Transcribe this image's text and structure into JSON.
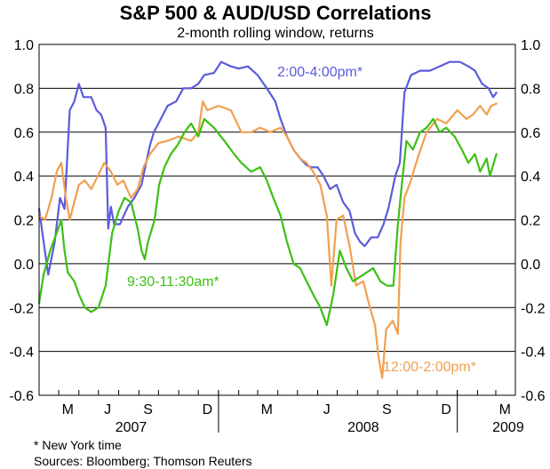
{
  "chart_data": {
    "type": "line",
    "title": "S&P 500 & AUD/USD Correlations",
    "subtitle": "2-month rolling window, returns",
    "ylim": [
      -0.6,
      1.0
    ],
    "yticks": [
      "1.0",
      "0.8",
      "0.6",
      "0.4",
      "0.2",
      "0.0",
      "-0.2",
      "-0.4",
      "-0.6"
    ],
    "x_range": [
      "2007-04-01",
      "2009-03-31"
    ],
    "month_ticks": [
      {
        "label": "M",
        "date": "2007-05-15"
      },
      {
        "label": "J",
        "date": "2007-07-15"
      },
      {
        "label": "S",
        "date": "2007-09-15"
      },
      {
        "label": "D",
        "date": "2007-12-15"
      },
      {
        "label": "M",
        "date": "2008-03-15"
      },
      {
        "label": "J",
        "date": "2008-06-15"
      },
      {
        "label": "S",
        "date": "2008-09-15"
      },
      {
        "label": "D",
        "date": "2008-12-15"
      },
      {
        "label": "M",
        "date": "2009-03-15"
      }
    ],
    "year_labels": [
      {
        "label": "2007",
        "date": "2007-08-20"
      },
      {
        "label": "2008",
        "date": "2008-08-10"
      },
      {
        "label": "2009",
        "date": "2009-03-20"
      }
    ],
    "year_dividers": [
      "2008-01-01",
      "2009-01-01"
    ],
    "grid": true,
    "series": [
      {
        "name": "2:00-4:00pm*",
        "color": "#5b5bdc",
        "points": [
          [
            "2007-04-01",
            0.25
          ],
          [
            "2007-04-08",
            0.1
          ],
          [
            "2007-04-15",
            -0.05
          ],
          [
            "2007-04-25",
            0.1
          ],
          [
            "2007-05-03",
            0.3
          ],
          [
            "2007-05-10",
            0.25
          ],
          [
            "2007-05-18",
            0.7
          ],
          [
            "2007-05-25",
            0.74
          ],
          [
            "2007-06-01",
            0.82
          ],
          [
            "2007-06-08",
            0.76
          ],
          [
            "2007-06-20",
            0.76
          ],
          [
            "2007-06-28",
            0.7
          ],
          [
            "2007-07-05",
            0.68
          ],
          [
            "2007-07-12",
            0.62
          ],
          [
            "2007-07-16",
            0.16
          ],
          [
            "2007-07-20",
            0.26
          ],
          [
            "2007-07-25",
            0.18
          ],
          [
            "2007-08-03",
            0.18
          ],
          [
            "2007-08-15",
            0.26
          ],
          [
            "2007-08-25",
            0.3
          ],
          [
            "2007-09-05",
            0.36
          ],
          [
            "2007-09-12",
            0.46
          ],
          [
            "2007-09-18",
            0.54
          ],
          [
            "2007-09-24",
            0.6
          ],
          [
            "2007-10-01",
            0.64
          ],
          [
            "2007-10-15",
            0.72
          ],
          [
            "2007-10-28",
            0.74
          ],
          [
            "2007-11-08",
            0.8
          ],
          [
            "2007-11-20",
            0.8
          ],
          [
            "2007-12-01",
            0.82
          ],
          [
            "2007-12-10",
            0.86
          ],
          [
            "2007-12-25",
            0.87
          ],
          [
            "2008-01-05",
            0.92
          ],
          [
            "2008-01-20",
            0.9
          ],
          [
            "2008-02-01",
            0.89
          ],
          [
            "2008-02-15",
            0.9
          ],
          [
            "2008-03-01",
            0.86
          ],
          [
            "2008-03-15",
            0.8
          ],
          [
            "2008-03-28",
            0.74
          ],
          [
            "2008-04-05",
            0.66
          ],
          [
            "2008-04-15",
            0.58
          ],
          [
            "2008-04-25",
            0.52
          ],
          [
            "2008-05-05",
            0.48
          ],
          [
            "2008-05-15",
            0.45
          ],
          [
            "2008-05-22",
            0.44
          ],
          [
            "2008-06-01",
            0.44
          ],
          [
            "2008-06-10",
            0.4
          ],
          [
            "2008-06-20",
            0.34
          ],
          [
            "2008-06-30",
            0.36
          ],
          [
            "2008-07-10",
            0.28
          ],
          [
            "2008-07-20",
            0.24
          ],
          [
            "2008-07-28",
            0.14
          ],
          [
            "2008-08-05",
            0.1
          ],
          [
            "2008-08-12",
            0.08
          ],
          [
            "2008-08-22",
            0.12
          ],
          [
            "2008-09-01",
            0.12
          ],
          [
            "2008-09-10",
            0.18
          ],
          [
            "2008-09-18",
            0.26
          ],
          [
            "2008-09-28",
            0.4
          ],
          [
            "2008-10-05",
            0.46
          ],
          [
            "2008-10-12",
            0.78
          ],
          [
            "2008-10-22",
            0.86
          ],
          [
            "2008-11-05",
            0.88
          ],
          [
            "2008-11-20",
            0.88
          ],
          [
            "2008-12-05",
            0.9
          ],
          [
            "2008-12-20",
            0.92
          ],
          [
            "2009-01-05",
            0.92
          ],
          [
            "2009-01-18",
            0.9
          ],
          [
            "2009-01-28",
            0.88
          ],
          [
            "2009-02-08",
            0.82
          ],
          [
            "2009-02-18",
            0.8
          ],
          [
            "2009-02-25",
            0.76
          ],
          [
            "2009-03-02",
            0.78
          ]
        ]
      },
      {
        "name": "12:00-2:00pm*",
        "color": "#f0a050",
        "points": [
          [
            "2007-04-01",
            0.22
          ],
          [
            "2007-04-10",
            0.2
          ],
          [
            "2007-04-20",
            0.3
          ],
          [
            "2007-04-28",
            0.42
          ],
          [
            "2007-05-05",
            0.46
          ],
          [
            "2007-05-12",
            0.3
          ],
          [
            "2007-05-18",
            0.2
          ],
          [
            "2007-05-25",
            0.28
          ],
          [
            "2007-06-01",
            0.36
          ],
          [
            "2007-06-10",
            0.38
          ],
          [
            "2007-06-20",
            0.34
          ],
          [
            "2007-06-30",
            0.4
          ],
          [
            "2007-07-10",
            0.46
          ],
          [
            "2007-07-20",
            0.42
          ],
          [
            "2007-07-30",
            0.36
          ],
          [
            "2007-08-08",
            0.38
          ],
          [
            "2007-08-20",
            0.3
          ],
          [
            "2007-08-30",
            0.34
          ],
          [
            "2007-09-08",
            0.44
          ],
          [
            "2007-09-18",
            0.5
          ],
          [
            "2007-10-01",
            0.55
          ],
          [
            "2007-10-15",
            0.56
          ],
          [
            "2007-11-01",
            0.58
          ],
          [
            "2007-11-20",
            0.56
          ],
          [
            "2007-12-01",
            0.6
          ],
          [
            "2007-12-08",
            0.74
          ],
          [
            "2007-12-15",
            0.7
          ],
          [
            "2008-01-01",
            0.72
          ],
          [
            "2008-01-20",
            0.7
          ],
          [
            "2008-02-05",
            0.6
          ],
          [
            "2008-02-20",
            0.6
          ],
          [
            "2008-03-05",
            0.62
          ],
          [
            "2008-03-20",
            0.6
          ],
          [
            "2008-04-05",
            0.62
          ],
          [
            "2008-04-15",
            0.58
          ],
          [
            "2008-04-25",
            0.52
          ],
          [
            "2008-05-05",
            0.48
          ],
          [
            "2008-05-15",
            0.46
          ],
          [
            "2008-05-25",
            0.42
          ],
          [
            "2008-06-05",
            0.36
          ],
          [
            "2008-06-15",
            0.22
          ],
          [
            "2008-06-22",
            -0.1
          ],
          [
            "2008-06-30",
            0.2
          ],
          [
            "2008-07-10",
            0.22
          ],
          [
            "2008-07-20",
            0.08
          ],
          [
            "2008-07-30",
            -0.1
          ],
          [
            "2008-08-10",
            -0.08
          ],
          [
            "2008-08-20",
            -0.2
          ],
          [
            "2008-08-28",
            -0.28
          ],
          [
            "2008-09-02",
            -0.42
          ],
          [
            "2008-09-08",
            -0.52
          ],
          [
            "2008-09-14",
            -0.3
          ],
          [
            "2008-09-24",
            -0.26
          ],
          [
            "2008-10-02",
            -0.32
          ],
          [
            "2008-10-06",
            0.1
          ],
          [
            "2008-10-12",
            0.3
          ],
          [
            "2008-10-22",
            0.38
          ],
          [
            "2008-11-01",
            0.48
          ],
          [
            "2008-11-15",
            0.6
          ],
          [
            "2008-12-01",
            0.66
          ],
          [
            "2008-12-15",
            0.64
          ],
          [
            "2009-01-01",
            0.7
          ],
          [
            "2009-01-15",
            0.66
          ],
          [
            "2009-01-25",
            0.68
          ],
          [
            "2009-02-05",
            0.72
          ],
          [
            "2009-02-15",
            0.68
          ],
          [
            "2009-02-22",
            0.72
          ],
          [
            "2009-03-02",
            0.73
          ]
        ]
      },
      {
        "name": "9:30-11:30am*",
        "color": "#3cc014",
        "points": [
          [
            "2007-04-01",
            -0.18
          ],
          [
            "2007-04-08",
            -0.05
          ],
          [
            "2007-04-18",
            0.06
          ],
          [
            "2007-04-28",
            0.14
          ],
          [
            "2007-05-05",
            0.2
          ],
          [
            "2007-05-10",
            0.06
          ],
          [
            "2007-05-15",
            -0.04
          ],
          [
            "2007-05-25",
            -0.08
          ],
          [
            "2007-06-01",
            -0.14
          ],
          [
            "2007-06-10",
            -0.2
          ],
          [
            "2007-06-20",
            -0.22
          ],
          [
            "2007-07-01",
            -0.2
          ],
          [
            "2007-07-12",
            -0.1
          ],
          [
            "2007-07-22",
            0.14
          ],
          [
            "2007-08-01",
            0.24
          ],
          [
            "2007-08-10",
            0.3
          ],
          [
            "2007-08-20",
            0.28
          ],
          [
            "2007-08-30",
            0.16
          ],
          [
            "2007-09-05",
            0.06
          ],
          [
            "2007-09-10",
            0.02
          ],
          [
            "2007-09-15",
            0.1
          ],
          [
            "2007-09-25",
            0.2
          ],
          [
            "2007-10-02",
            0.36
          ],
          [
            "2007-10-10",
            0.44
          ],
          [
            "2007-10-20",
            0.5
          ],
          [
            "2007-10-30",
            0.54
          ],
          [
            "2007-11-10",
            0.6
          ],
          [
            "2007-11-20",
            0.64
          ],
          [
            "2007-12-01",
            0.58
          ],
          [
            "2007-12-10",
            0.66
          ],
          [
            "2007-12-25",
            0.62
          ],
          [
            "2008-01-10",
            0.56
          ],
          [
            "2008-01-25",
            0.5
          ],
          [
            "2008-02-05",
            0.46
          ],
          [
            "2008-02-20",
            0.42
          ],
          [
            "2008-03-05",
            0.44
          ],
          [
            "2008-03-15",
            0.38
          ],
          [
            "2008-03-25",
            0.3
          ],
          [
            "2008-04-05",
            0.22
          ],
          [
            "2008-04-15",
            0.1
          ],
          [
            "2008-04-25",
            0.0
          ],
          [
            "2008-05-05",
            -0.02
          ],
          [
            "2008-05-15",
            -0.08
          ],
          [
            "2008-05-25",
            -0.14
          ],
          [
            "2008-06-05",
            -0.2
          ],
          [
            "2008-06-15",
            -0.28
          ],
          [
            "2008-06-25",
            -0.14
          ],
          [
            "2008-07-05",
            0.06
          ],
          [
            "2008-07-15",
            -0.02
          ],
          [
            "2008-07-25",
            -0.08
          ],
          [
            "2008-08-05",
            -0.06
          ],
          [
            "2008-08-15",
            -0.04
          ],
          [
            "2008-08-25",
            -0.02
          ],
          [
            "2008-09-05",
            -0.08
          ],
          [
            "2008-09-15",
            -0.1
          ],
          [
            "2008-09-25",
            -0.1
          ],
          [
            "2008-10-02",
            0.18
          ],
          [
            "2008-10-08",
            0.36
          ],
          [
            "2008-10-15",
            0.56
          ],
          [
            "2008-10-25",
            0.52
          ],
          [
            "2008-11-05",
            0.6
          ],
          [
            "2008-11-15",
            0.62
          ],
          [
            "2008-11-25",
            0.66
          ],
          [
            "2008-12-05",
            0.6
          ],
          [
            "2008-12-15",
            0.62
          ],
          [
            "2008-12-28",
            0.58
          ],
          [
            "2009-01-08",
            0.52
          ],
          [
            "2009-01-18",
            0.46
          ],
          [
            "2009-01-28",
            0.5
          ],
          [
            "2009-02-05",
            0.42
          ],
          [
            "2009-02-15",
            0.48
          ],
          [
            "2009-02-20",
            0.4
          ],
          [
            "2009-03-02",
            0.5
          ]
        ]
      }
    ]
  },
  "footnote": "*  New York time",
  "sources": "Sources: Bloomberg; Thomson Reuters"
}
